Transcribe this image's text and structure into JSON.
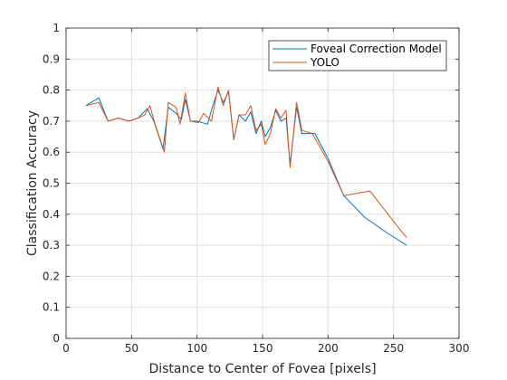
{
  "chart_data": {
    "type": "line",
    "xlabel": "Distance to Center of Fovea [pixels]",
    "ylabel": "Classification Accuracy",
    "xlim": [
      0,
      300
    ],
    "ylim": [
      0,
      1
    ],
    "xticks": [
      0,
      50,
      100,
      150,
      200,
      250,
      300
    ],
    "yticks": [
      0,
      0.1,
      0.2,
      0.3,
      0.4,
      0.5,
      0.6,
      0.7,
      0.8,
      0.9,
      1
    ],
    "grid": true,
    "legend_position": "top-right",
    "series": [
      {
        "name": "Foveal Correction Model",
        "color": "#0072BD",
        "x": [
          15,
          25,
          32,
          40,
          48,
          55,
          62,
          67,
          74,
          78,
          84,
          88,
          91,
          95,
          100,
          108,
          112,
          116,
          120,
          124,
          128,
          132,
          137,
          141,
          145,
          149,
          152,
          156,
          160,
          164,
          168,
          171,
          176,
          180,
          190,
          200,
          212,
          228,
          245,
          260
        ],
        "y": [
          0.75,
          0.775,
          0.7,
          0.71,
          0.7,
          0.71,
          0.74,
          0.7,
          0.61,
          0.745,
          0.725,
          0.705,
          0.77,
          0.7,
          0.7,
          0.69,
          0.75,
          0.8,
          0.76,
          0.795,
          0.64,
          0.72,
          0.7,
          0.73,
          0.66,
          0.7,
          0.65,
          0.68,
          0.735,
          0.7,
          0.71,
          0.56,
          0.745,
          0.66,
          0.66,
          0.58,
          0.46,
          0.39,
          0.34,
          0.3
        ]
      },
      {
        "name": "YOLO",
        "color": "#D95319",
        "x": [
          15,
          25,
          32,
          40,
          48,
          55,
          60,
          64,
          68,
          75,
          78,
          84,
          87,
          91,
          95,
          101,
          105,
          111,
          116,
          120,
          124,
          128,
          132,
          137,
          141,
          145,
          149,
          152,
          156,
          160,
          164,
          168,
          171,
          176,
          180,
          188,
          200,
          212,
          232,
          255,
          260
        ],
        "y": [
          0.75,
          0.76,
          0.7,
          0.71,
          0.7,
          0.71,
          0.72,
          0.75,
          0.69,
          0.6,
          0.76,
          0.745,
          0.69,
          0.79,
          0.7,
          0.695,
          0.725,
          0.7,
          0.81,
          0.75,
          0.8,
          0.64,
          0.72,
          0.72,
          0.75,
          0.67,
          0.69,
          0.625,
          0.66,
          0.74,
          0.71,
          0.735,
          0.55,
          0.76,
          0.67,
          0.66,
          0.57,
          0.46,
          0.475,
          0.35,
          0.325
        ]
      }
    ]
  }
}
